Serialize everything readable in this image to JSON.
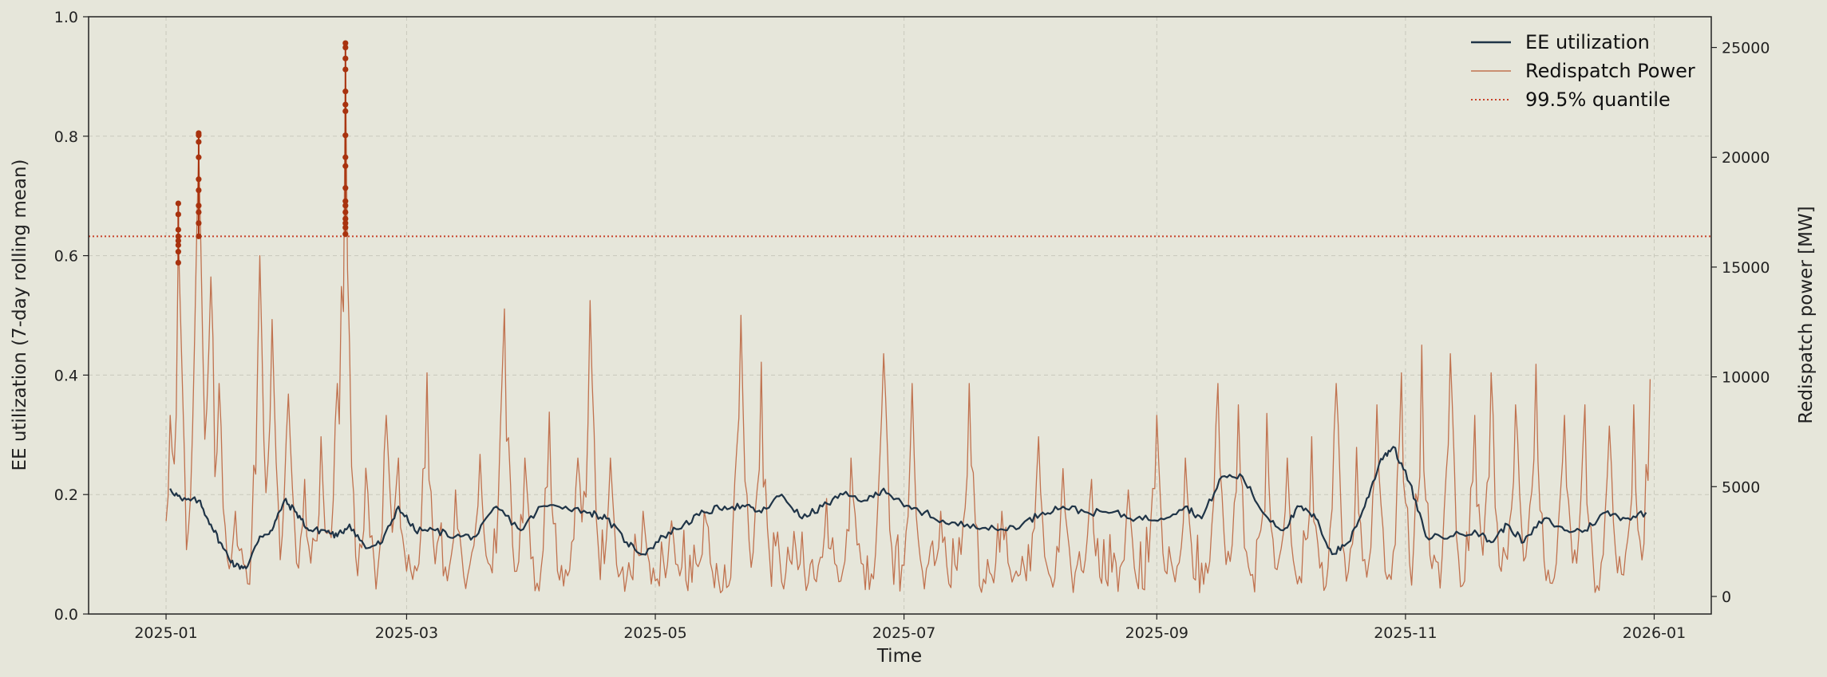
{
  "chart_data": {
    "type": "line",
    "x_axis": {
      "label": "Time",
      "range": [
        "2024-12-13",
        "2026-01-15"
      ],
      "ticks": [
        "2025-01-01",
        "2025-03-01",
        "2025-05-01",
        "2025-07-01",
        "2025-09-01",
        "2025-11-01",
        "2026-01-01"
      ],
      "tick_labels": [
        "2025-01",
        "2025-03",
        "2025-05",
        "2025-07",
        "2025-09",
        "2025-11",
        "2026-01"
      ],
      "grid": true
    },
    "y_left": {
      "label": "EE utilization (7-day rolling mean)",
      "range": [
        0,
        1
      ],
      "ticks": [
        0,
        0.2,
        0.4,
        0.6,
        0.8,
        1
      ],
      "tick_labels": [
        "0.0",
        "0.2",
        "0.4",
        "0.6",
        "0.8",
        "1.0"
      ],
      "grid": true
    },
    "y_right": {
      "label": "Redispatch power [MW]",
      "range": [
        -800,
        26400
      ],
      "ticks": [
        0,
        5000,
        10000,
        15000,
        20000,
        25000
      ],
      "tick_labels": [
        "0",
        "5000",
        "10000",
        "15000",
        "20000",
        "25000"
      ]
    },
    "legend": {
      "placement": "top-right",
      "entries": [
        "EE utilization",
        "Redispatch Power",
        "99.5% quantile"
      ]
    },
    "series": [
      {
        "name": "EE utilization",
        "axis": "left",
        "color": "#1f3447",
        "points": [
          [
            "2025-01-02",
            0.21
          ],
          [
            "2025-01-05",
            0.19
          ],
          [
            "2025-01-09",
            0.19
          ],
          [
            "2025-01-12",
            0.15
          ],
          [
            "2025-01-15",
            0.11
          ],
          [
            "2025-01-18",
            0.08
          ],
          [
            "2025-01-21",
            0.08
          ],
          [
            "2025-01-24",
            0.13
          ],
          [
            "2025-01-27",
            0.14
          ],
          [
            "2025-01-30",
            0.19
          ],
          [
            "2025-02-02",
            0.17
          ],
          [
            "2025-02-05",
            0.14
          ],
          [
            "2025-02-09",
            0.14
          ],
          [
            "2025-02-12",
            0.13
          ],
          [
            "2025-02-15",
            0.15
          ],
          [
            "2025-02-19",
            0.11
          ],
          [
            "2025-02-23",
            0.12
          ],
          [
            "2025-02-27",
            0.18
          ],
          [
            "2025-03-03",
            0.14
          ],
          [
            "2025-03-08",
            0.14
          ],
          [
            "2025-03-13",
            0.13
          ],
          [
            "2025-03-18",
            0.13
          ],
          [
            "2025-03-23",
            0.18
          ],
          [
            "2025-03-29",
            0.14
          ],
          [
            "2025-04-03",
            0.18
          ],
          [
            "2025-04-09",
            0.18
          ],
          [
            "2025-04-15",
            0.17
          ],
          [
            "2025-04-19",
            0.16
          ],
          [
            "2025-04-24",
            0.12
          ],
          [
            "2025-04-28",
            0.1
          ],
          [
            "2025-05-03",
            0.13
          ],
          [
            "2025-05-08",
            0.15
          ],
          [
            "2025-05-13",
            0.17
          ],
          [
            "2025-05-18",
            0.18
          ],
          [
            "2025-05-23",
            0.18
          ],
          [
            "2025-05-27",
            0.17
          ],
          [
            "2025-06-01",
            0.2
          ],
          [
            "2025-06-06",
            0.16
          ],
          [
            "2025-06-11",
            0.18
          ],
          [
            "2025-06-16",
            0.2
          ],
          [
            "2025-06-22",
            0.19
          ],
          [
            "2025-06-26",
            0.21
          ],
          [
            "2025-07-01",
            0.18
          ],
          [
            "2025-07-06",
            0.17
          ],
          [
            "2025-07-12",
            0.15
          ],
          [
            "2025-07-18",
            0.15
          ],
          [
            "2025-07-24",
            0.14
          ],
          [
            "2025-07-30",
            0.15
          ],
          [
            "2025-08-04",
            0.17
          ],
          [
            "2025-08-09",
            0.18
          ],
          [
            "2025-08-15",
            0.17
          ],
          [
            "2025-08-21",
            0.17
          ],
          [
            "2025-08-27",
            0.16
          ],
          [
            "2025-09-02",
            0.16
          ],
          [
            "2025-09-08",
            0.18
          ],
          [
            "2025-09-12",
            0.16
          ],
          [
            "2025-09-17",
            0.23
          ],
          [
            "2025-09-22",
            0.23
          ],
          [
            "2025-09-27",
            0.17
          ],
          [
            "2025-10-02",
            0.14
          ],
          [
            "2025-10-06",
            0.18
          ],
          [
            "2025-10-10",
            0.16
          ],
          [
            "2025-10-14",
            0.1
          ],
          [
            "2025-10-18",
            0.12
          ],
          [
            "2025-10-22",
            0.18
          ],
          [
            "2025-10-26",
            0.26
          ],
          [
            "2025-10-29",
            0.28
          ],
          [
            "2025-11-02",
            0.22
          ],
          [
            "2025-11-06",
            0.13
          ],
          [
            "2025-11-12",
            0.13
          ],
          [
            "2025-11-18",
            0.14
          ],
          [
            "2025-11-22",
            0.12
          ],
          [
            "2025-11-26",
            0.15
          ],
          [
            "2025-11-30",
            0.12
          ],
          [
            "2025-12-05",
            0.16
          ],
          [
            "2025-12-10",
            0.14
          ],
          [
            "2025-12-15",
            0.14
          ],
          [
            "2025-12-20",
            0.17
          ],
          [
            "2025-12-25",
            0.16
          ],
          [
            "2025-12-30",
            0.17
          ]
        ]
      },
      {
        "name": "Redispatch Power",
        "axis": "right",
        "color": "#c0724f",
        "peaks": [
          [
            "2025-01-02",
            8500
          ],
          [
            "2025-01-04",
            17000
          ],
          [
            "2025-01-08",
            11500
          ],
          [
            "2025-01-09",
            21000
          ],
          [
            "2025-01-12",
            15000
          ],
          [
            "2025-01-14",
            10000
          ],
          [
            "2025-01-18",
            4000
          ],
          [
            "2025-01-24",
            16000
          ],
          [
            "2025-01-27",
            13000
          ],
          [
            "2025-01-31",
            9500
          ],
          [
            "2025-02-04",
            5500
          ],
          [
            "2025-02-08",
            7500
          ],
          [
            "2025-02-12",
            10000
          ],
          [
            "2025-02-14",
            25200
          ],
          [
            "2025-02-19",
            6000
          ],
          [
            "2025-02-24",
            8500
          ],
          [
            "2025-02-27",
            6500
          ],
          [
            "2025-03-06",
            10500
          ],
          [
            "2025-03-13",
            5000
          ],
          [
            "2025-03-19",
            6500
          ],
          [
            "2025-03-25",
            13500
          ],
          [
            "2025-03-30",
            6500
          ],
          [
            "2025-04-05",
            8500
          ],
          [
            "2025-04-12",
            6500
          ],
          [
            "2025-04-15",
            13700
          ],
          [
            "2025-04-20",
            6500
          ],
          [
            "2025-04-28",
            4000
          ],
          [
            "2025-05-05",
            3500
          ],
          [
            "2025-05-13",
            4000
          ],
          [
            "2025-05-22",
            13200
          ],
          [
            "2025-05-27",
            11000
          ],
          [
            "2025-06-04",
            3000
          ],
          [
            "2025-06-12",
            4500
          ],
          [
            "2025-06-18",
            6500
          ],
          [
            "2025-06-26",
            11400
          ],
          [
            "2025-07-03",
            10000
          ],
          [
            "2025-07-10",
            4000
          ],
          [
            "2025-07-17",
            10000
          ],
          [
            "2025-07-25",
            4000
          ],
          [
            "2025-08-03",
            7500
          ],
          [
            "2025-08-09",
            6000
          ],
          [
            "2025-08-16",
            5500
          ],
          [
            "2025-08-25",
            5000
          ],
          [
            "2025-09-01",
            8500
          ],
          [
            "2025-09-08",
            6500
          ],
          [
            "2025-09-16",
            10000
          ],
          [
            "2025-09-21",
            9000
          ],
          [
            "2025-09-28",
            8500
          ],
          [
            "2025-10-03",
            6500
          ],
          [
            "2025-10-09",
            7500
          ],
          [
            "2025-10-15",
            10000
          ],
          [
            "2025-10-20",
            7000
          ],
          [
            "2025-10-25",
            9000
          ],
          [
            "2025-10-31",
            10500
          ],
          [
            "2025-11-05",
            11800
          ],
          [
            "2025-11-12",
            11400
          ],
          [
            "2025-11-18",
            8500
          ],
          [
            "2025-11-22",
            10500
          ],
          [
            "2025-11-28",
            9000
          ],
          [
            "2025-12-03",
            10900
          ],
          [
            "2025-12-10",
            8500
          ],
          [
            "2025-12-15",
            9000
          ],
          [
            "2025-12-21",
            8000
          ],
          [
            "2025-12-27",
            9000
          ],
          [
            "2025-12-31",
            10200
          ]
        ]
      },
      {
        "name": "99.5% quantile",
        "axis": "right",
        "color": "#c8432a",
        "value": 16400
      }
    ],
    "highlighted_points": {
      "axis": "right",
      "color": "#a8320e",
      "dates": [
        "2025-01-04",
        "2025-01-09",
        "2025-02-14"
      ],
      "groups": [
        [
          15200,
          15700,
          16000,
          16200,
          16400,
          16700,
          17400,
          17900
        ],
        [
          16400,
          17000,
          17500,
          17800,
          18500,
          19000,
          20000,
          20700,
          21000,
          21100
        ],
        [
          16500,
          16800,
          17000,
          17200,
          17500,
          17800,
          18000,
          18600,
          19600,
          20000,
          21000,
          22100,
          22400,
          23000,
          24000,
          24500,
          25000,
          25200
        ]
      ]
    }
  }
}
